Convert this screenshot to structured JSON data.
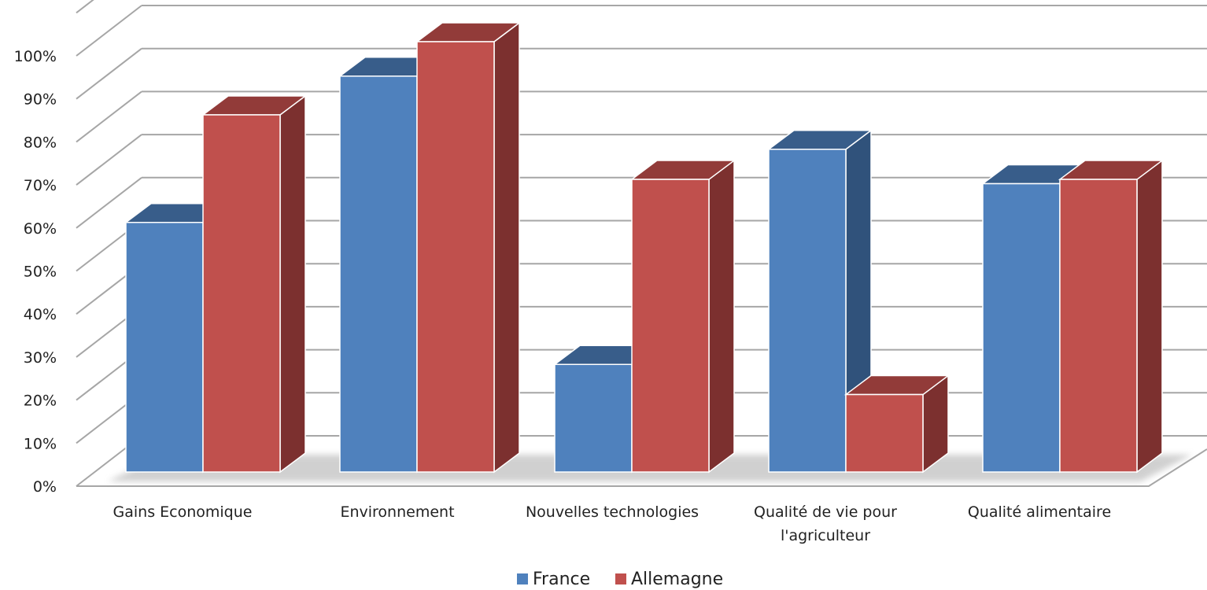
{
  "chart_data": {
    "type": "bar",
    "title": "",
    "xlabel": "",
    "ylabel": "",
    "ylim": [
      0,
      1
    ],
    "grid": true,
    "legend": "bottom",
    "yticks": [
      "0%",
      "10%",
      "20%",
      "30%",
      "40%",
      "50%",
      "60%",
      "70%",
      "80%",
      "90%",
      "100%"
    ],
    "categories": [
      [
        "Gains Economique"
      ],
      [
        "Environnement"
      ],
      [
        "Nouvelles technologies"
      ],
      [
        "Qualité de vie pour",
        "l'agriculteur"
      ],
      [
        "Qualité alimentaire"
      ]
    ],
    "series": [
      {
        "name": "France",
        "values": [
          0.58,
          0.92,
          0.25,
          0.75,
          0.67
        ],
        "color": "#4f81bd",
        "top": "#385d8a",
        "side": "#30527b"
      },
      {
        "name": "Allemagne",
        "values": [
          0.83,
          1.0,
          0.68,
          0.18,
          0.68
        ],
        "color": "#c0504d",
        "top": "#923b39",
        "side": "#7c302f"
      }
    ]
  }
}
